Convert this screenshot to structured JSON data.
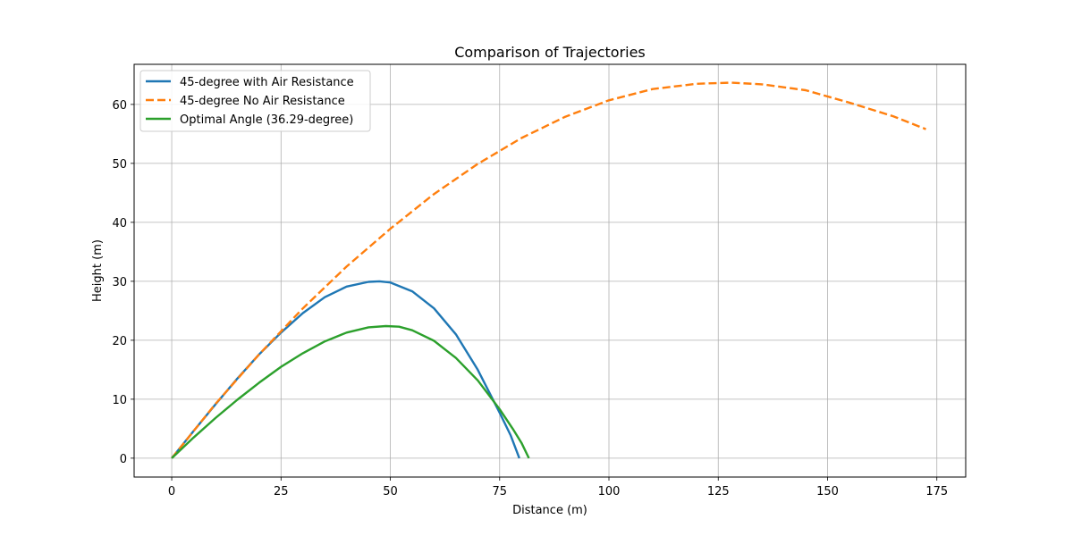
{
  "chart_data": {
    "type": "line",
    "title": "Comparison of Trajectories",
    "xlabel": "Distance (m)",
    "ylabel": "Height (m)",
    "xlim": [
      -8.6,
      181.6
    ],
    "ylim": [
      -3.2,
      66.8
    ],
    "xticks": [
      0,
      25,
      50,
      75,
      100,
      125,
      150,
      175
    ],
    "yticks": [
      0,
      10,
      20,
      30,
      40,
      50,
      60
    ],
    "grid": true,
    "legend": "top-left",
    "series": [
      {
        "name": "45-degree with Air Resistance",
        "color": "#1f77b4",
        "style": "solid",
        "points": [
          [
            0,
            0
          ],
          [
            5,
            4.6
          ],
          [
            10,
            9.1
          ],
          [
            15,
            13.5
          ],
          [
            20,
            17.6
          ],
          [
            25,
            21.3
          ],
          [
            30,
            24.6
          ],
          [
            35,
            27.3
          ],
          [
            40,
            29.1
          ],
          [
            45,
            29.9
          ],
          [
            47.5,
            30.0
          ],
          [
            50,
            29.8
          ],
          [
            55,
            28.3
          ],
          [
            60,
            25.4
          ],
          [
            65,
            21.0
          ],
          [
            70,
            15.0
          ],
          [
            75,
            7.7
          ],
          [
            77.5,
            3.9
          ],
          [
            79.5,
            0
          ]
        ]
      },
      {
        "name": "45-degree No Air Resistance",
        "color": "#ff7f0e",
        "style": "dashed",
        "points": [
          [
            0,
            0
          ],
          [
            10,
            9.2
          ],
          [
            20,
            17.6
          ],
          [
            30,
            25.4
          ],
          [
            40,
            32.5
          ],
          [
            50,
            38.9
          ],
          [
            60,
            44.8
          ],
          [
            70,
            49.9
          ],
          [
            80,
            54.3
          ],
          [
            90,
            57.9
          ],
          [
            100,
            60.7
          ],
          [
            110,
            62.6
          ],
          [
            120,
            63.5
          ],
          [
            128,
            63.7
          ],
          [
            135,
            63.4
          ],
          [
            145,
            62.4
          ],
          [
            155,
            60.3
          ],
          [
            165,
            58.0
          ],
          [
            172.5,
            55.8
          ]
        ]
      },
      {
        "name": "Optimal Angle (36.29-degree)",
        "color": "#2ca02c",
        "style": "solid",
        "points": [
          [
            0,
            0
          ],
          [
            5,
            3.5
          ],
          [
            10,
            6.8
          ],
          [
            15,
            9.9
          ],
          [
            20,
            12.8
          ],
          [
            25,
            15.5
          ],
          [
            30,
            17.8
          ],
          [
            35,
            19.8
          ],
          [
            40,
            21.3
          ],
          [
            45,
            22.2
          ],
          [
            49,
            22.4
          ],
          [
            52,
            22.3
          ],
          [
            55,
            21.7
          ],
          [
            60,
            19.9
          ],
          [
            65,
            17.0
          ],
          [
            70,
            13.2
          ],
          [
            75,
            8.3
          ],
          [
            78,
            5.0
          ],
          [
            80,
            2.6
          ],
          [
            81.7,
            0
          ]
        ]
      }
    ]
  }
}
